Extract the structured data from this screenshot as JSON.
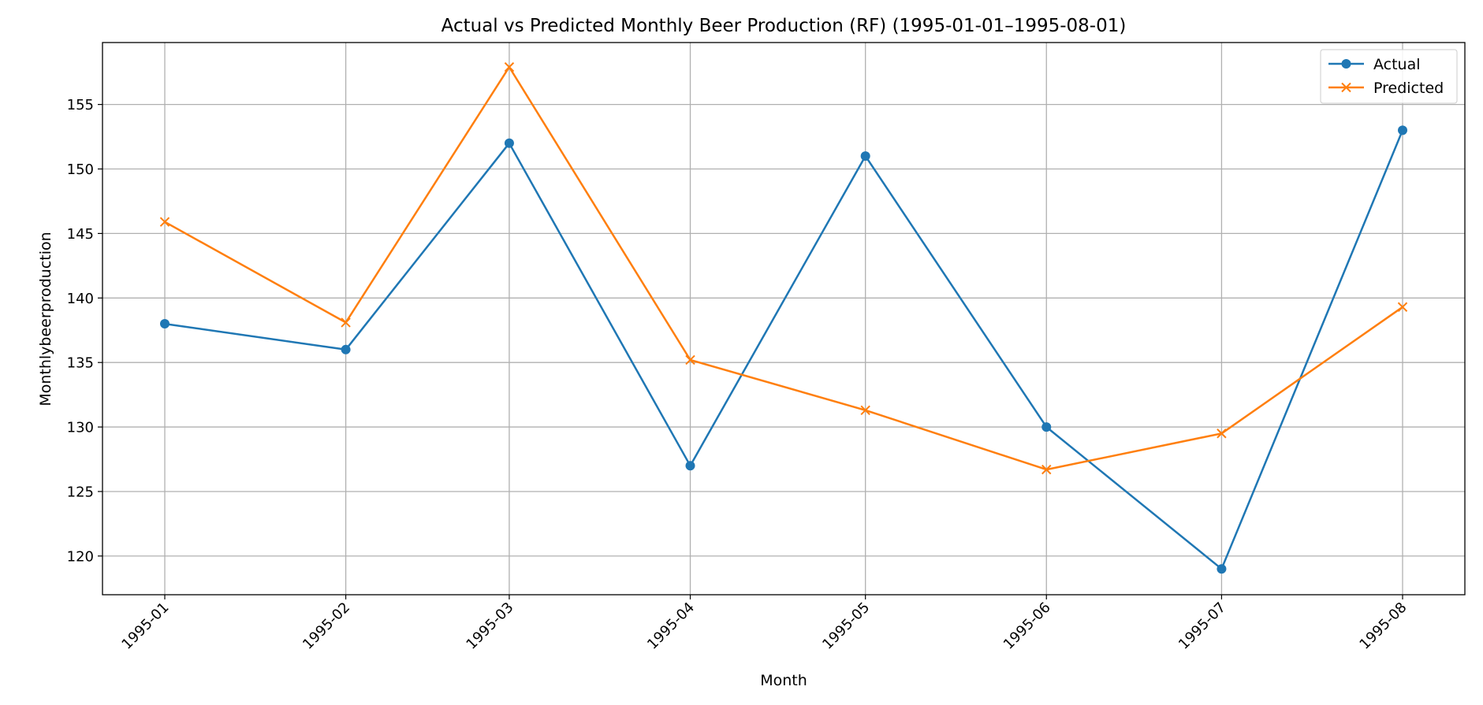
{
  "chart_data": {
    "type": "line",
    "title": "Actual vs Predicted Monthly Beer Production (RF) (1995-01-01–1995-08-01)",
    "xlabel": "Month",
    "ylabel": "Monthlybeerproduction",
    "x": [
      "1995-01",
      "1995-02",
      "1995-03",
      "1995-04",
      "1995-05",
      "1995-06",
      "1995-07",
      "1995-08"
    ],
    "x_dates": [
      "1995-01-01",
      "1995-02-01",
      "1995-03-01",
      "1995-04-01",
      "1995-05-01",
      "1995-06-01",
      "1995-07-01",
      "1995-08-01"
    ],
    "ylim": [
      117,
      159.8
    ],
    "yticks": [
      120,
      125,
      130,
      135,
      140,
      145,
      150,
      155
    ],
    "grid": true,
    "legend_position": "top-right",
    "series": [
      {
        "name": "Actual",
        "color": "#1f77b4",
        "marker": "circle",
        "values": [
          138,
          136,
          152,
          127,
          151,
          130,
          119,
          153
        ]
      },
      {
        "name": "Predicted",
        "color": "#ff7f0e",
        "marker": "x",
        "values": [
          145.9,
          138.1,
          157.9,
          135.2,
          131.3,
          126.7,
          129.5,
          139.3
        ]
      }
    ]
  }
}
